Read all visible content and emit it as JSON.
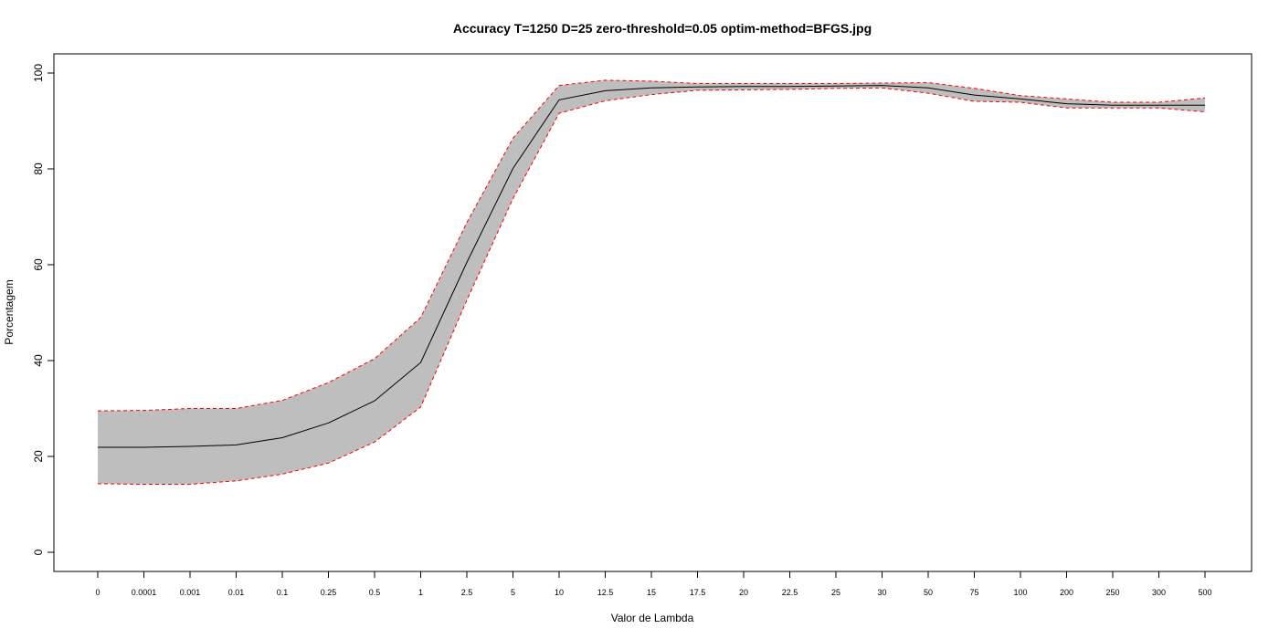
{
  "chart_data": {
    "type": "line",
    "title": "Accuracy T=1250 D=25 zero-threshold=0.05 optim-method=BFGS.jpg",
    "xlabel": "Valor de Lambda",
    "ylabel": "Porcentagem",
    "ylim": [
      0,
      100
    ],
    "yticks": [
      0,
      20,
      40,
      60,
      80,
      100
    ],
    "grid": false,
    "categories": [
      "0",
      "0.0001",
      "0.001",
      "0.01",
      "0.1",
      "0.25",
      "0.5",
      "1",
      "2.5",
      "5",
      "10",
      "12.5",
      "15",
      "17.5",
      "20",
      "22.5",
      "25",
      "30",
      "50",
      "75",
      "100",
      "200",
      "250",
      "300",
      "500"
    ],
    "series": [
      {
        "name": "mean",
        "style": "solid",
        "color": "#000000",
        "values": [
          21.9,
          21.9,
          22.1,
          22.4,
          23.9,
          27.0,
          31.6,
          39.6,
          60.5,
          80.1,
          94.4,
          96.3,
          96.9,
          97.1,
          97.2,
          97.2,
          97.3,
          97.4,
          96.9,
          95.4,
          94.6,
          93.6,
          93.3,
          93.3,
          93.3
        ]
      },
      {
        "name": "upper",
        "style": "dashed",
        "color": "#ff0000",
        "values": [
          29.5,
          29.6,
          30.0,
          30.0,
          31.7,
          35.4,
          40.4,
          49.0,
          68.8,
          86.4,
          97.4,
          98.5,
          98.3,
          97.8,
          97.8,
          97.8,
          97.8,
          97.9,
          98.0,
          96.8,
          95.3,
          94.6,
          93.9,
          93.9,
          94.8
        ]
      },
      {
        "name": "lower",
        "style": "dashed",
        "color": "#ff0000",
        "values": [
          14.3,
          14.2,
          14.2,
          14.9,
          16.3,
          18.6,
          23.0,
          30.3,
          52.6,
          73.8,
          91.6,
          94.2,
          95.5,
          96.4,
          96.5,
          96.6,
          96.8,
          96.9,
          95.8,
          94.1,
          93.9,
          92.7,
          92.7,
          92.7,
          91.9
        ]
      }
    ],
    "band_fill": "#bebebe"
  }
}
